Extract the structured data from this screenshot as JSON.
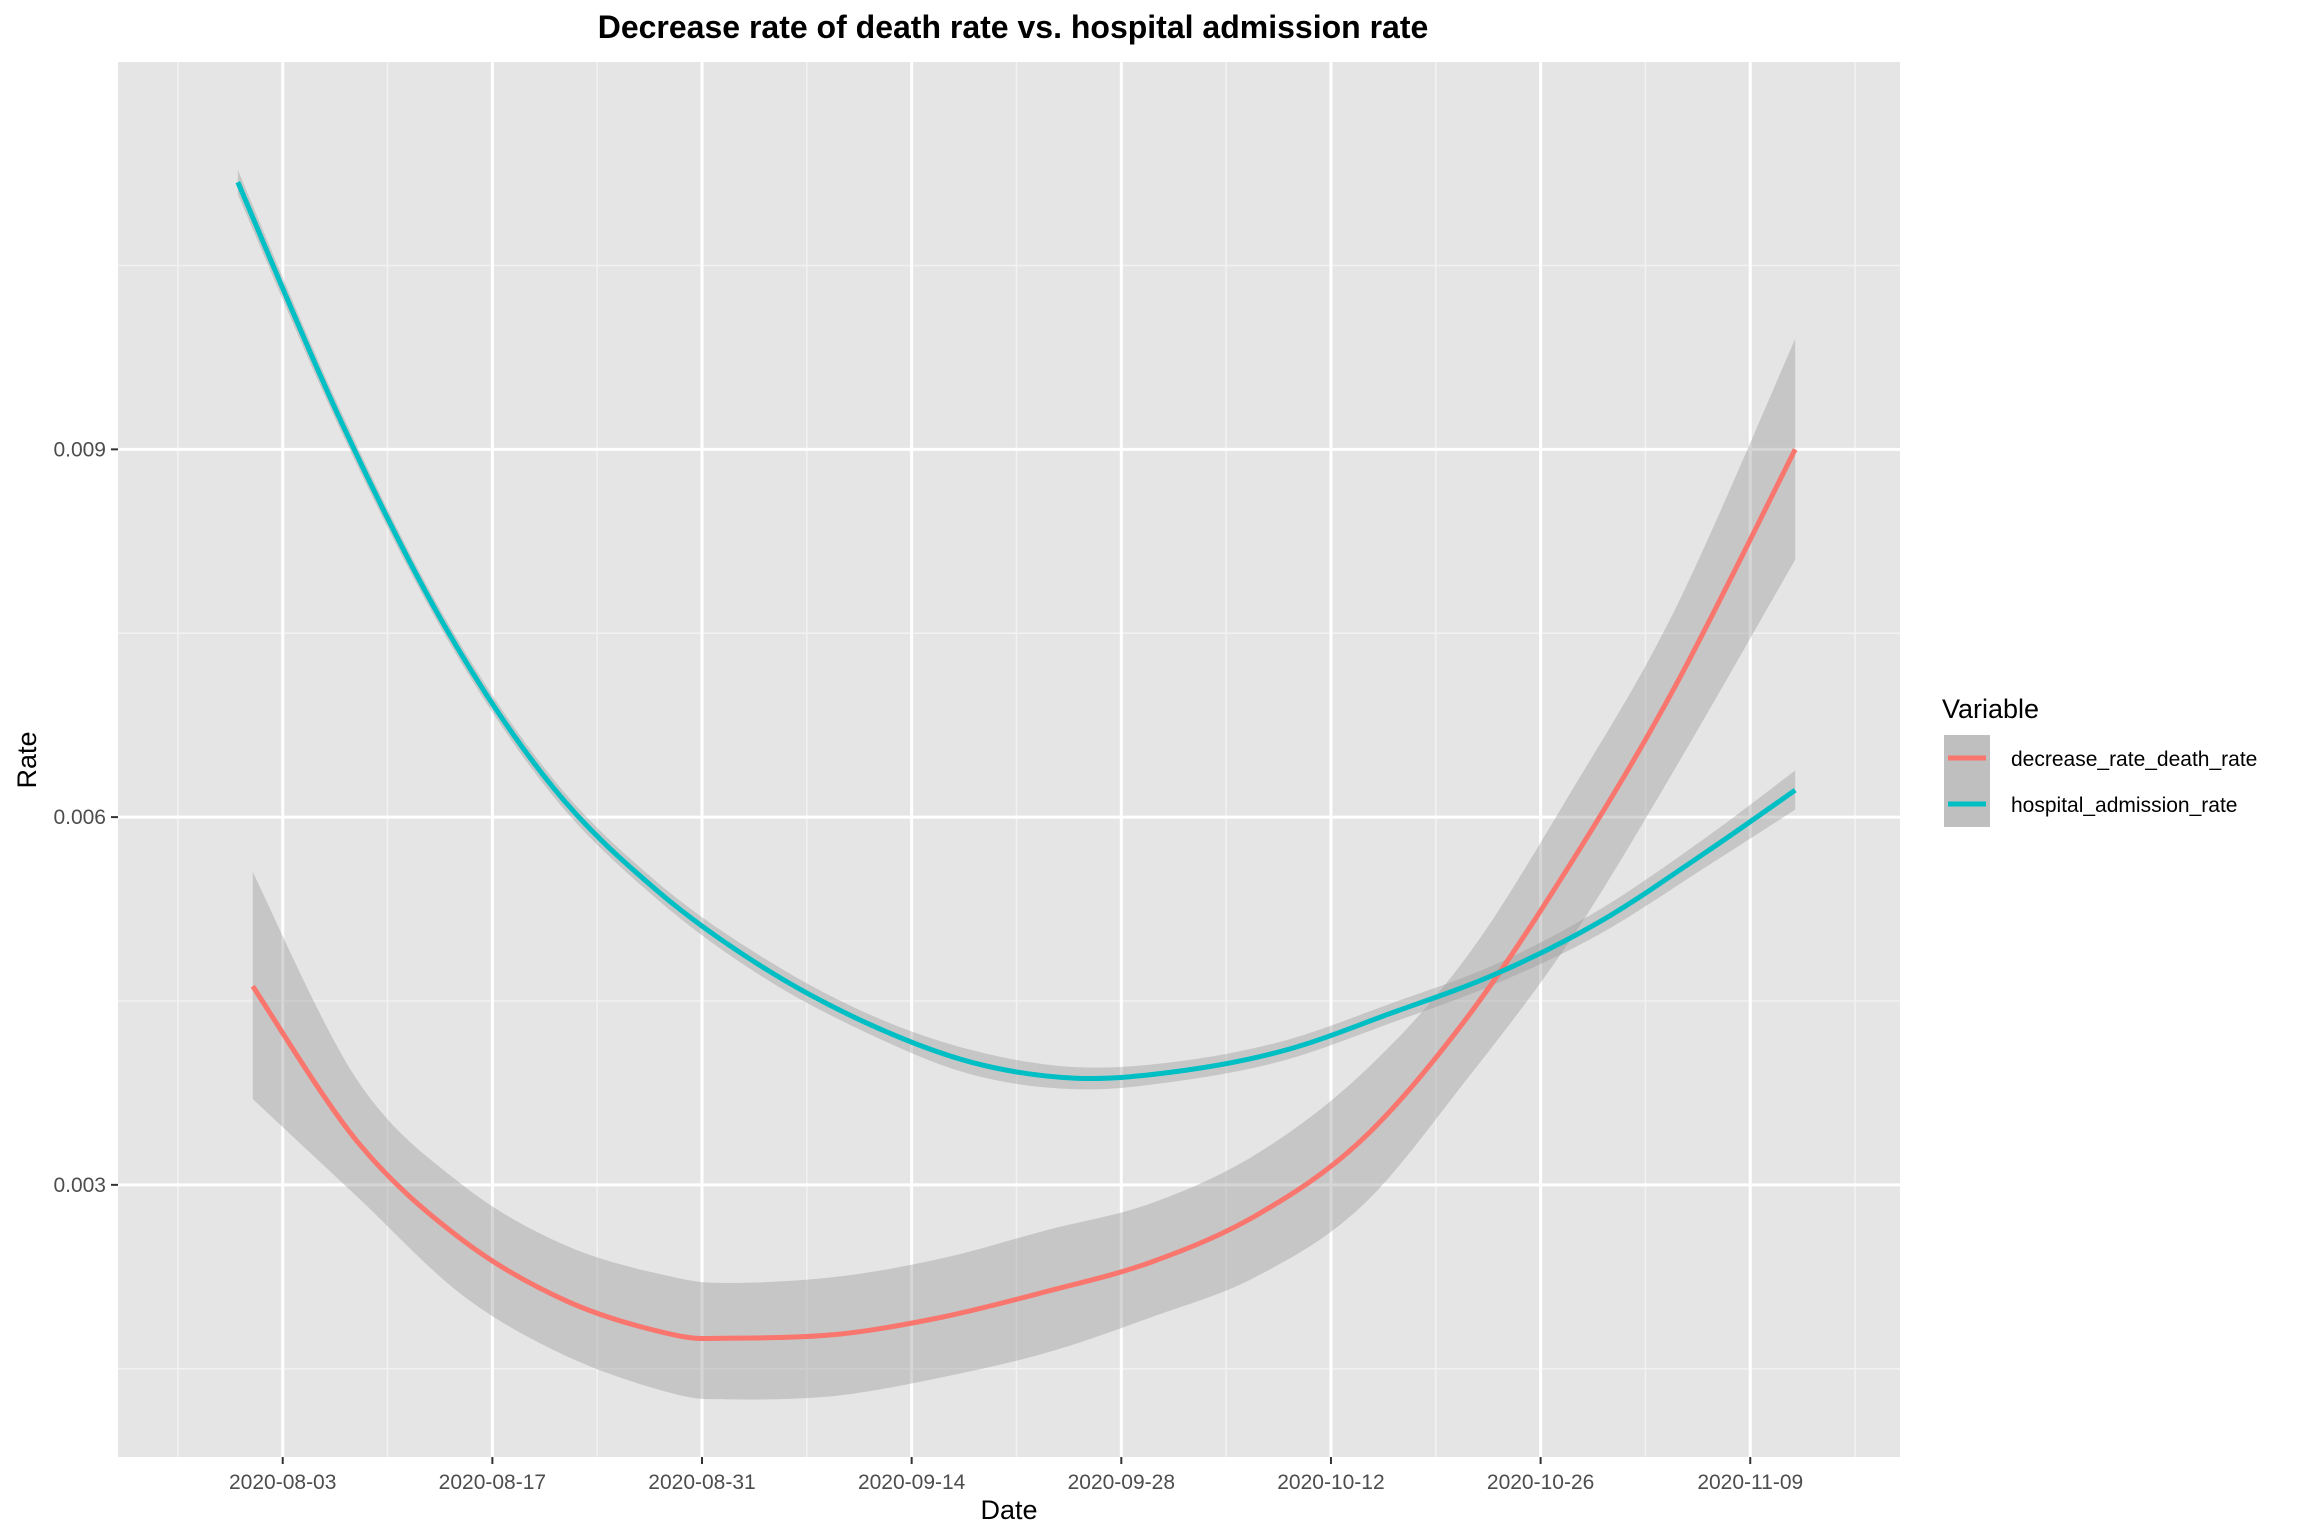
{
  "chart_data": {
    "type": "line",
    "title": "Decrease rate of death rate vs. hospital admission rate",
    "xlabel": "Date",
    "ylabel": "Rate",
    "x_axis_type": "date",
    "xlim": [
      "2020-07-23",
      "2020-11-19"
    ],
    "ylim": [
      0.00078,
      0.01216
    ],
    "x_ticks": [
      "2020-08-03",
      "2020-08-17",
      "2020-08-31",
      "2020-09-14",
      "2020-09-28",
      "2020-10-12",
      "2020-10-26",
      "2020-11-09"
    ],
    "x_tick_labels": [
      "2020-08-03",
      "2020-08-17",
      "2020-08-31",
      "2020-09-14",
      "2020-09-28",
      "2020-10-12",
      "2020-10-26",
      "2020-11-09"
    ],
    "y_ticks": [
      0.003,
      0.006,
      0.009
    ],
    "y_tick_labels": [
      "0.003",
      "0.006",
      "0.009"
    ],
    "grid": true,
    "legend": {
      "title": "Variable",
      "position": "right"
    },
    "series": [
      {
        "name": "decrease_rate_death_rate",
        "color": "#F8766D",
        "x": [
          "2020-08-01",
          "2020-08-08",
          "2020-08-15",
          "2020-08-22",
          "2020-08-29",
          "2020-09-02",
          "2020-09-09",
          "2020-09-16",
          "2020-09-23",
          "2020-09-30",
          "2020-10-07",
          "2020-10-14",
          "2020-10-21",
          "2020-10-28",
          "2020-11-04",
          "2020-11-12"
        ],
        "y": [
          0.00462,
          0.00335,
          0.00255,
          0.00205,
          0.00178,
          0.00175,
          0.00178,
          0.00192,
          0.00213,
          0.00237,
          0.00275,
          0.00336,
          0.00435,
          0.00562,
          0.00707,
          0.009
        ],
        "ci_lower": [
          0.0037,
          0.0029,
          0.0021,
          0.0016,
          0.0013,
          0.00125,
          0.00128,
          0.00143,
          0.00163,
          0.00192,
          0.00225,
          0.00282,
          0.00385,
          0.005,
          0.0064,
          0.0081
        ],
        "ci_upper": [
          0.00555,
          0.00385,
          0.003,
          0.0025,
          0.00225,
          0.0022,
          0.00225,
          0.0024,
          0.00263,
          0.00285,
          0.00325,
          0.0039,
          0.00485,
          0.0062,
          0.0077,
          0.0099
        ]
      },
      {
        "name": "hospital_admission_rate",
        "color": "#00BFC4",
        "x": [
          "2020-07-31",
          "2020-08-07",
          "2020-08-14",
          "2020-08-21",
          "2020-08-28",
          "2020-09-04",
          "2020-09-11",
          "2020-09-18",
          "2020-09-25",
          "2020-10-02",
          "2020-10-09",
          "2020-10-16",
          "2020-10-23",
          "2020-10-30",
          "2020-11-06",
          "2020-11-12"
        ],
        "y": [
          0.01118,
          0.0092,
          0.00752,
          0.00625,
          0.0054,
          0.00478,
          0.00432,
          0.004,
          0.00387,
          0.00393,
          0.0041,
          0.0044,
          0.00472,
          0.00515,
          0.00571,
          0.00622
        ],
        "ci_lower": [
          0.01108,
          0.00912,
          0.00745,
          0.00618,
          0.00533,
          0.0047,
          0.00424,
          0.0039,
          0.00378,
          0.00385,
          0.00402,
          0.00432,
          0.00464,
          0.00505,
          0.00559,
          0.00606
        ],
        "ci_upper": [
          0.01128,
          0.00928,
          0.00759,
          0.00632,
          0.00547,
          0.00486,
          0.0044,
          0.0041,
          0.00396,
          0.00401,
          0.00418,
          0.00448,
          0.0048,
          0.00525,
          0.00583,
          0.00638
        ]
      }
    ]
  }
}
